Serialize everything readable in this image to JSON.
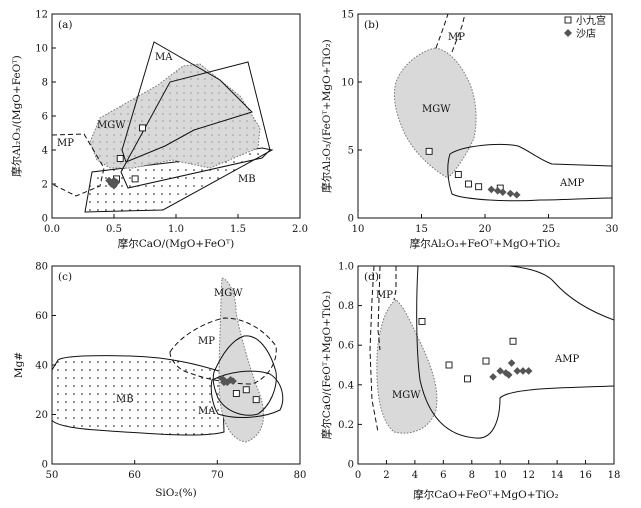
{
  "chart_data": [
    {
      "type": "scatter",
      "panel_label": "(a)",
      "xlabel": "摩尔CaO/(MgO+FeOᵀ)",
      "ylabel": "摩尔Al₂O₃/(MgO+FeOᵀ)",
      "xlim": [
        0,
        2.0
      ],
      "ylim": [
        0,
        12
      ],
      "x_ticks": [
        "0.0",
        "0.5",
        "1.0",
        "1.5",
        "2.0"
      ],
      "y_ticks": [
        "0",
        "2",
        "4",
        "6",
        "8",
        "10",
        "12"
      ],
      "region_labels": [
        "MA",
        "MGW",
        "MP",
        "MB"
      ],
      "series": [
        {
          "name": "小九宫",
          "marker": "open-square",
          "points": [
            [
              0.55,
              3.5
            ],
            [
              0.52,
              2.3
            ],
            [
              0.67,
              2.3
            ],
            [
              0.73,
              5.3
            ]
          ]
        },
        {
          "name": "沙店",
          "marker": "filled-diamond",
          "points": [
            [
              0.46,
              2.2
            ],
            [
              0.48,
              2.0
            ],
            [
              0.5,
              1.9
            ],
            [
              0.52,
              2.1
            ],
            [
              0.5,
              2.2
            ]
          ]
        }
      ]
    },
    {
      "type": "scatter",
      "panel_label": "(b)",
      "xlabel": "摩尔Al₂O₃+FeOᵀ+MgO+TiO₂",
      "ylabel": "摩尔Al₂O₃/(FeOᵀ+MgO+TiO₂)",
      "xlim": [
        10,
        30
      ],
      "ylim": [
        0,
        15
      ],
      "x_ticks": [
        "10",
        "15",
        "20",
        "25",
        "30"
      ],
      "y_ticks": [
        "0",
        "5",
        "10",
        "15"
      ],
      "legend": {
        "position": "top-right",
        "entries": [
          "小九宫",
          "沙店"
        ]
      },
      "region_labels": [
        "MP",
        "MGW",
        "AMP"
      ],
      "series": [
        {
          "name": "小九宫",
          "marker": "open-square",
          "points": [
            [
              15.6,
              4.9
            ],
            [
              17.9,
              3.2
            ],
            [
              18.7,
              2.5
            ],
            [
              19.5,
              2.3
            ],
            [
              21.2,
              2.2
            ]
          ]
        },
        {
          "name": "沙店",
          "marker": "filled-diamond",
          "points": [
            [
              20.5,
              2.1
            ],
            [
              21.0,
              2.0
            ],
            [
              21.4,
              1.9
            ],
            [
              22.0,
              1.8
            ],
            [
              22.5,
              1.7
            ]
          ]
        }
      ]
    },
    {
      "type": "scatter",
      "panel_label": "(c)",
      "xlabel": "SiO₂(%)",
      "ylabel": "Mg#",
      "xlim": [
        50,
        80
      ],
      "ylim": [
        0,
        80
      ],
      "x_ticks": [
        "50",
        "60",
        "70",
        "80"
      ],
      "y_ticks": [
        "0",
        "20",
        "40",
        "60",
        "80"
      ],
      "region_labels": [
        "MGW",
        "MP",
        "MB",
        "MA"
      ],
      "series": [
        {
          "name": "小九宫",
          "marker": "open-square",
          "points": [
            [
              72.3,
              28.5
            ],
            [
              73.5,
              30.0
            ],
            [
              74.7,
              26.0
            ]
          ]
        },
        {
          "name": "沙店",
          "marker": "filled-diamond",
          "points": [
            [
              70.6,
              34.5
            ],
            [
              70.9,
              33.5
            ],
            [
              71.2,
              33.0
            ],
            [
              71.6,
              34.0
            ],
            [
              71.9,
              33.5
            ],
            [
              70.8,
              33.0
            ]
          ]
        }
      ]
    },
    {
      "type": "scatter",
      "panel_label": "(d)",
      "xlabel": "摩尔CaO+FeOᵀ+MgO+TiO₂",
      "ylabel": "摩尔CaO/(FeOᵀ+MgO+TiO₂)",
      "xlim": [
        0,
        18
      ],
      "ylim": [
        0,
        1.0
      ],
      "x_ticks": [
        "0",
        "2",
        "4",
        "6",
        "8",
        "10",
        "12",
        "14",
        "16",
        "18"
      ],
      "y_ticks": [
        "0",
        "0.2",
        "0.4",
        "0.6",
        "0.8",
        "1.0"
      ],
      "region_labels": [
        "MP",
        "MGW",
        "AMP"
      ],
      "series": [
        {
          "name": "小九宫",
          "marker": "open-square",
          "points": [
            [
              4.5,
              0.72
            ],
            [
              6.4,
              0.5
            ],
            [
              7.7,
              0.43
            ],
            [
              9.0,
              0.52
            ],
            [
              10.9,
              0.62
            ]
          ]
        },
        {
          "name": "沙店",
          "marker": "filled-diamond",
          "points": [
            [
              9.5,
              0.44
            ],
            [
              10.0,
              0.47
            ],
            [
              10.4,
              0.46
            ],
            [
              10.8,
              0.51
            ],
            [
              11.2,
              0.47
            ],
            [
              11.6,
              0.47
            ],
            [
              12.0,
              0.47
            ],
            [
              10.6,
              0.45
            ]
          ]
        }
      ]
    }
  ],
  "colors": {
    "axis": "#111111",
    "shade": "#d9d9d9",
    "marker_fill": "#555555"
  }
}
